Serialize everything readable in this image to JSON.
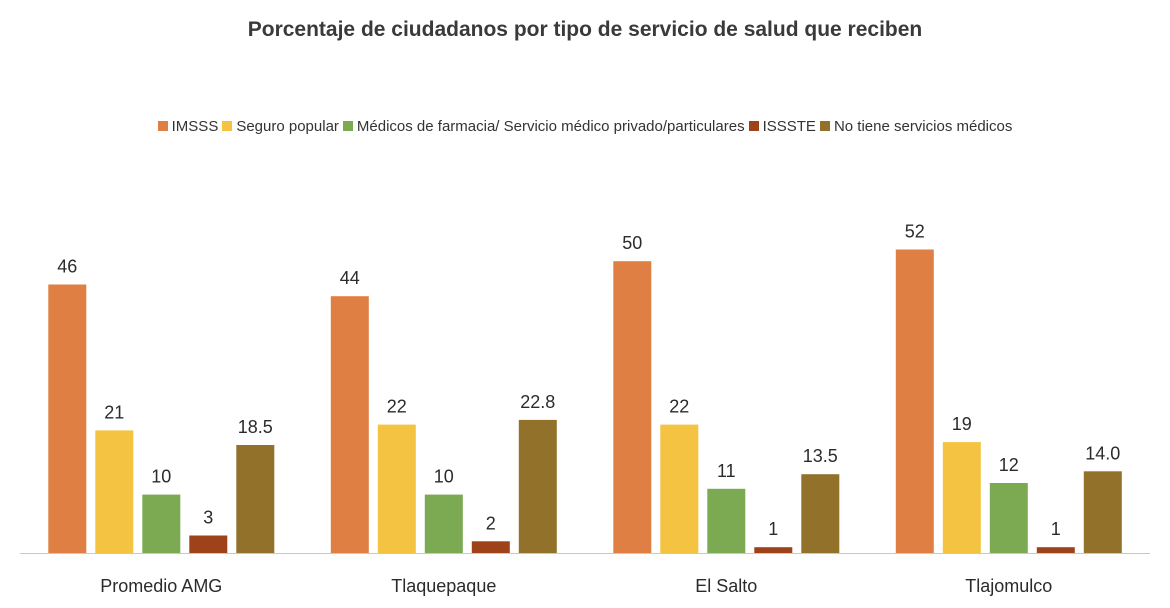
{
  "chart_data": {
    "type": "bar",
    "title": "Porcentaje de ciudadanos por tipo de servicio de salud que reciben",
    "categories": [
      "Promedio AMG",
      "Tlaquepaque",
      "El Salto",
      "Tlajomulco"
    ],
    "series": [
      {
        "name": "IMSSS",
        "color": "#E07F43",
        "values": [
          46,
          44,
          50,
          52
        ],
        "labels": [
          "46",
          "44",
          "50",
          "52"
        ]
      },
      {
        "name": "Seguro popular",
        "color": "#F5C342",
        "values": [
          21,
          22,
          22,
          19
        ],
        "labels": [
          "21",
          "22",
          "22",
          "19"
        ]
      },
      {
        "name": "Médicos de farmacia/ Servicio médico privado/particulares",
        "color": "#7BAA53",
        "values": [
          10,
          10,
          11,
          12
        ],
        "labels": [
          "10",
          "10",
          "11",
          "12"
        ]
      },
      {
        "name": "ISSSTE",
        "color": "#9E4319",
        "values": [
          3,
          2,
          1,
          1
        ],
        "labels": [
          "3",
          "2",
          "1",
          "1"
        ]
      },
      {
        "name": "No tiene servicios médicos",
        "color": "#92722A",
        "values": [
          18.5,
          22.8,
          13.5,
          14.0
        ],
        "labels": [
          "18.5",
          "22.8",
          "13.5",
          "14.0"
        ]
      }
    ],
    "ylim": [
      0,
      55
    ],
    "grid": false,
    "legend_position": "top"
  }
}
